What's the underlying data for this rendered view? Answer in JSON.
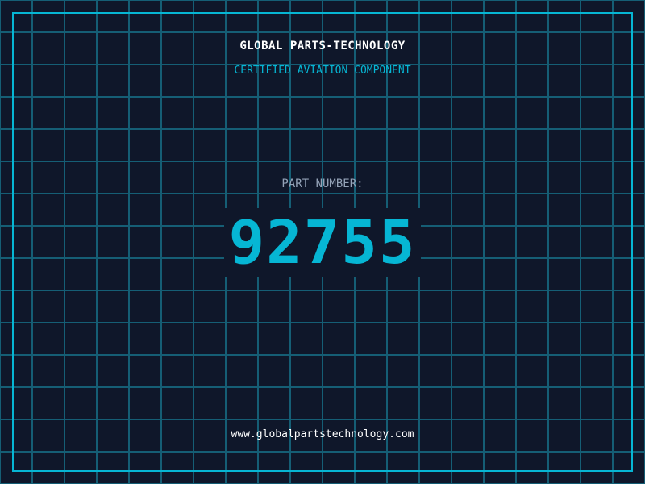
{
  "header": {
    "title": "GLOBAL PARTS-TECHNOLOGY",
    "subtitle": "CERTIFIED AVIATION COMPONENT"
  },
  "part": {
    "label": "PART NUMBER:",
    "number": "92755"
  },
  "footer": {
    "url": "www.globalpartstechnology.com"
  },
  "colors": {
    "background": "#0f172a",
    "accent": "#06b6d4",
    "grid": "#155e75"
  }
}
